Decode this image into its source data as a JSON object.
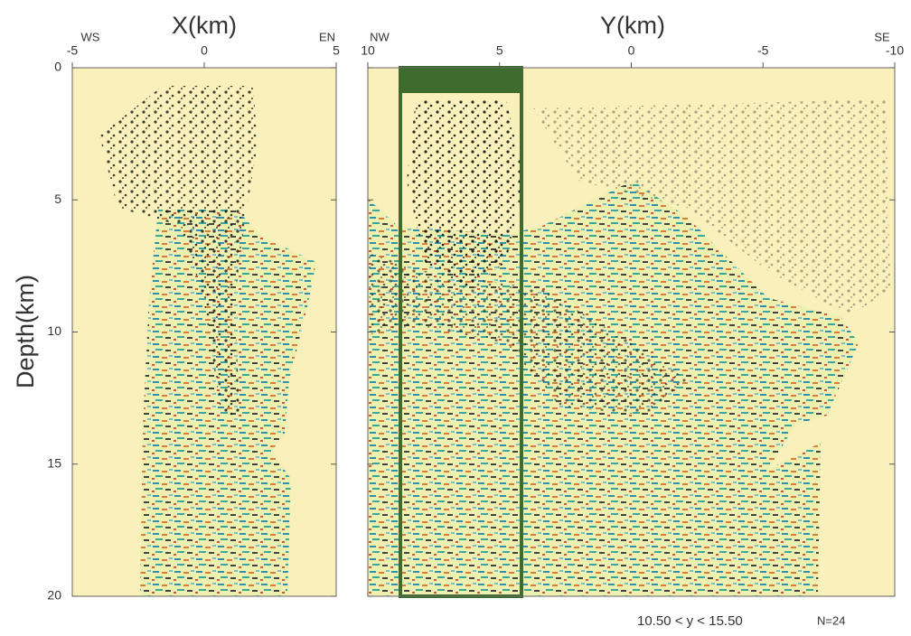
{
  "chart_data": [
    {
      "type": "scatter",
      "xlabel": "X(km)",
      "ylabel": "Depth(km)",
      "x_end_labels": [
        "WS",
        "EN"
      ],
      "xlim": [
        -5,
        5
      ],
      "xticks": [
        -5,
        0,
        5
      ],
      "ylim": [
        20,
        0
      ],
      "yticks": [
        0,
        5,
        10,
        15,
        20
      ]
    },
    {
      "type": "scatter",
      "xlabel": "Y(km)",
      "x_end_labels": [
        "NW",
        "SE"
      ],
      "xlim": [
        10,
        -10
      ],
      "xticks": [
        10,
        5,
        0,
        -5,
        -10
      ],
      "ylim": [
        20,
        0
      ],
      "annotation": "10.50 < y < 15.50",
      "note": "N=24"
    }
  ]
}
